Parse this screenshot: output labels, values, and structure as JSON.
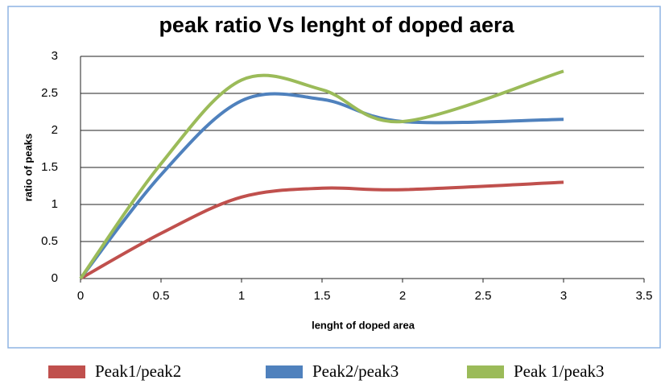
{
  "chart_data": {
    "type": "line",
    "title": "peak ratio Vs lenght of doped aera",
    "xlabel": "lenght of doped area",
    "ylabel": "ratio of peaks",
    "x": [
      0,
      0.5,
      1,
      1.5,
      2,
      3
    ],
    "series": [
      {
        "name": "Peak1/peak2",
        "color": "#c0504d",
        "values": [
          0,
          0.61,
          1.1,
          1.22,
          1.2,
          1.3
        ]
      },
      {
        "name": "Peak2/peak3",
        "color": "#4f81bd",
        "values": [
          0,
          1.4,
          2.4,
          2.42,
          2.12,
          2.15
        ]
      },
      {
        "name": "Peak 1/peak3",
        "color": "#9bbb59",
        "values": [
          0,
          1.55,
          2.68,
          2.55,
          2.12,
          2.8
        ]
      }
    ],
    "xlim": [
      0,
      3.5
    ],
    "xticks": [
      0,
      0.5,
      1,
      1.5,
      2,
      2.5,
      3,
      3.5
    ],
    "ylim": [
      0,
      3
    ],
    "yticks": [
      0,
      0.5,
      1,
      1.5,
      2,
      2.5,
      3
    ],
    "grid": true,
    "smooth": true,
    "legend": "bottom"
  }
}
